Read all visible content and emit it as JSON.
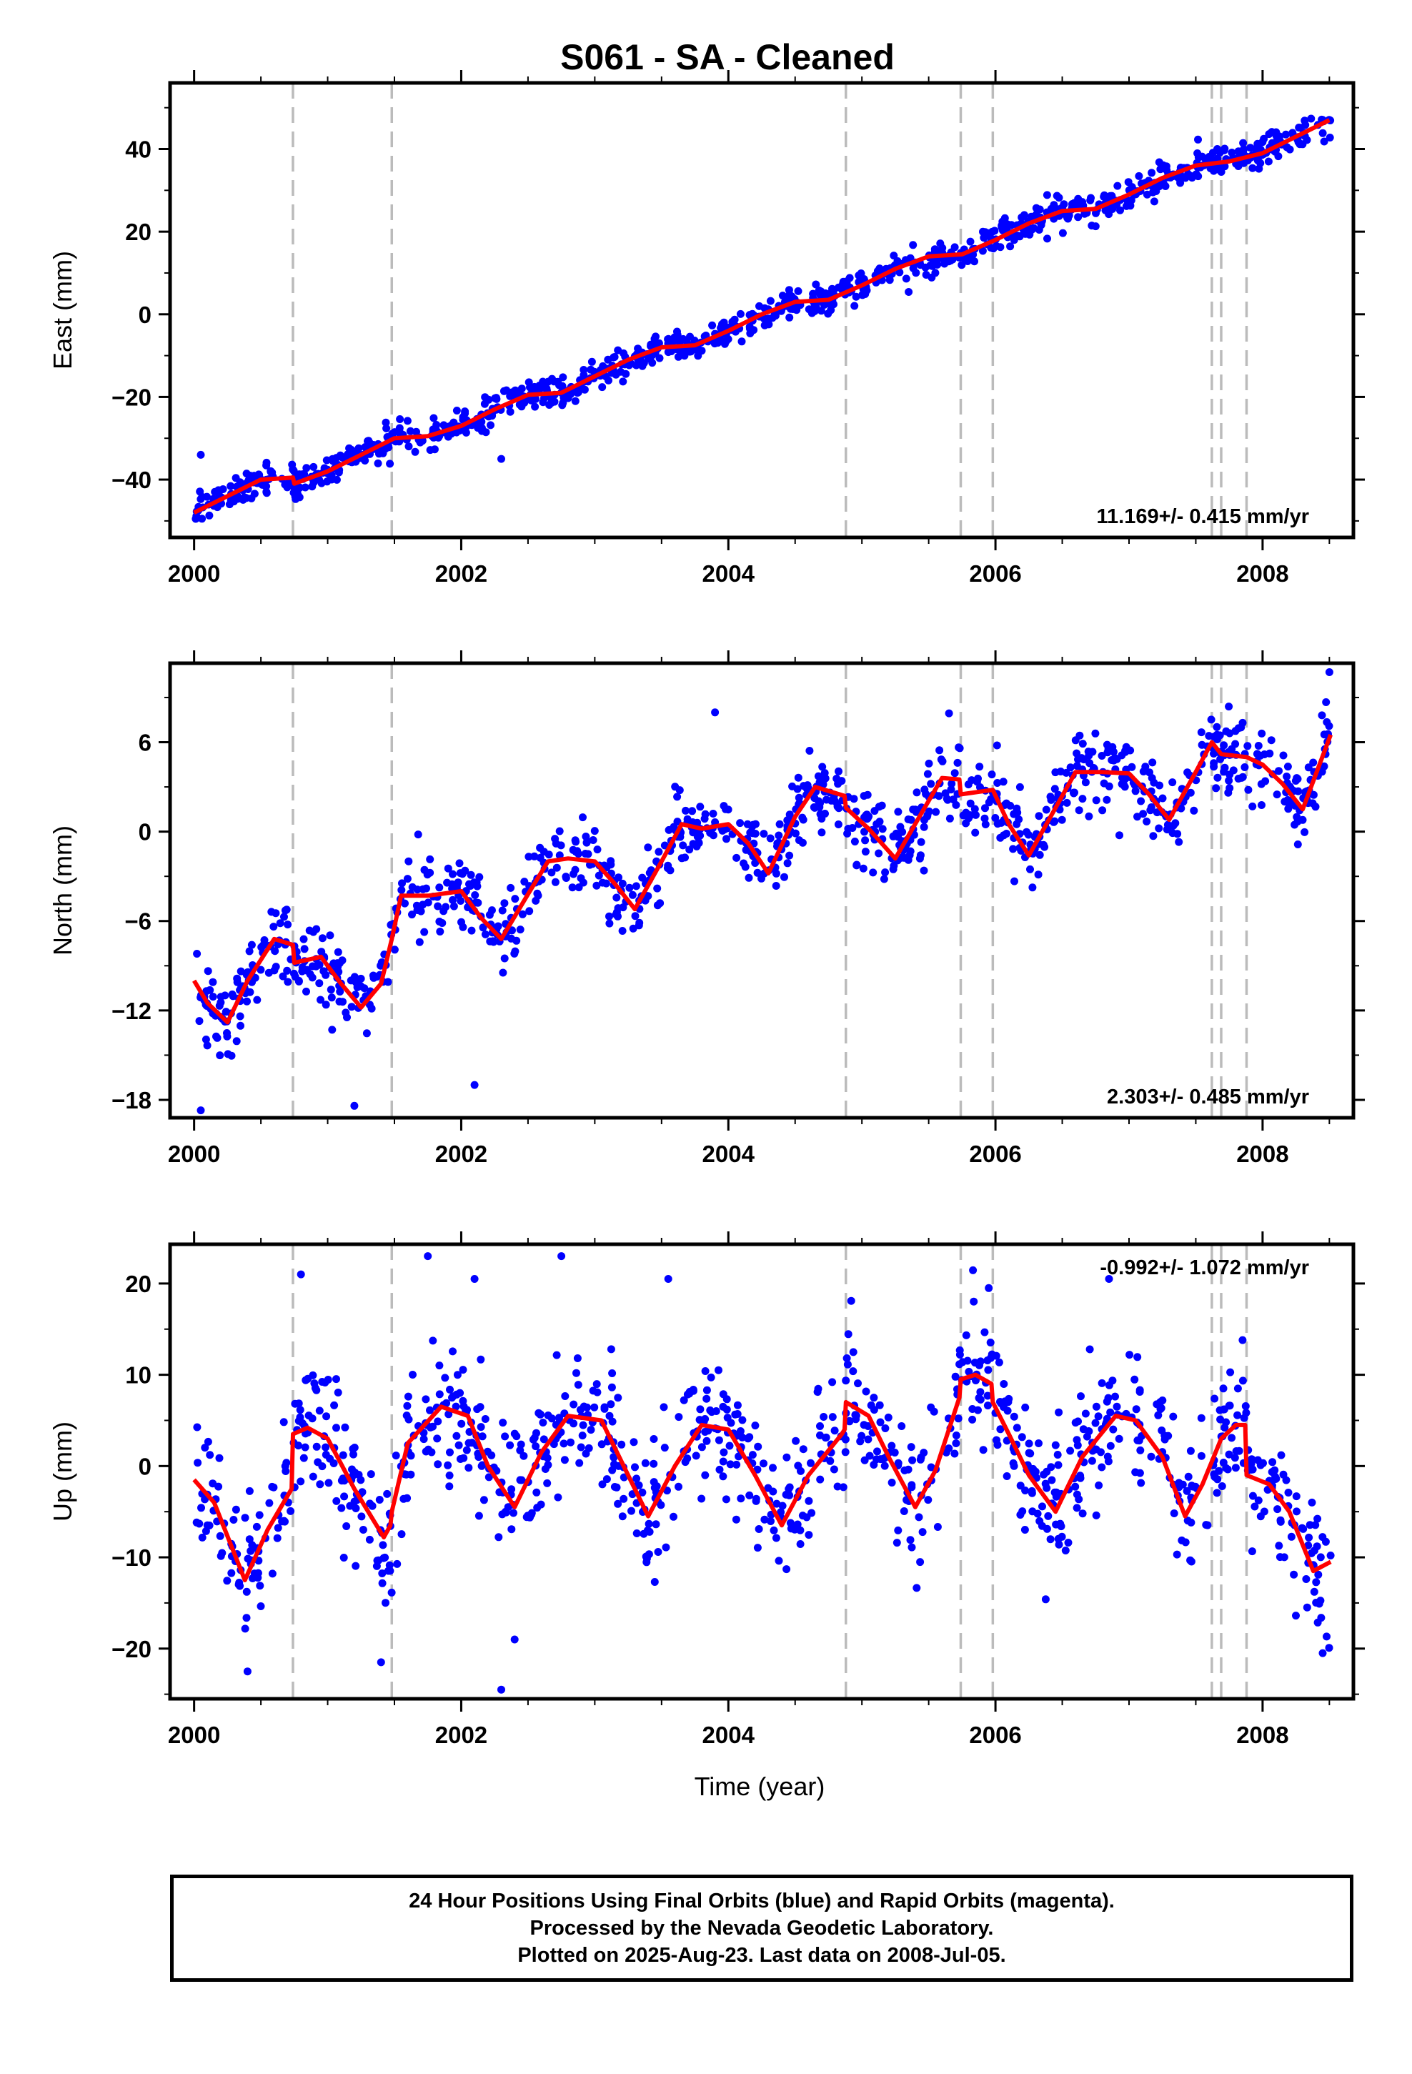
{
  "title": "S061  - SA - Cleaned",
  "colors": {
    "data_points": "#0000ff",
    "model": "#ff0000",
    "breaks": "#bbbbbb",
    "frame": "#000000"
  },
  "chart_data": [
    {
      "type": "scatter",
      "component": "East",
      "ylabel": "East (mm)",
      "xlabel": "",
      "xlim": [
        1999.82,
        2008.68
      ],
      "ylim": [
        -54,
        56
      ],
      "yticks": [
        -40,
        -20,
        0,
        20,
        40
      ],
      "xticks": [
        2000,
        2002,
        2004,
        2006,
        2008
      ],
      "rate_text": "11.169+/- 0.415 mm/yr",
      "rate_position": "bottom-right",
      "model": {
        "t": [
          2000.0,
          2000.25,
          2000.5,
          2000.74,
          2000.75,
          2001.0,
          2001.25,
          2001.5,
          2001.75,
          2002.0,
          2002.25,
          2002.5,
          2002.75,
          2003.0,
          2003.25,
          2003.5,
          2003.75,
          2004.0,
          2004.25,
          2004.5,
          2004.75,
          2005.0,
          2005.25,
          2005.5,
          2005.75,
          2006.0,
          2006.25,
          2006.5,
          2006.75,
          2007.0,
          2007.25,
          2007.5,
          2007.75,
          2008.0,
          2008.25,
          2008.5
        ],
        "y": [
          -48,
          -44,
          -40,
          -39.5,
          -41,
          -38,
          -34,
          -30,
          -29.5,
          -27,
          -23,
          -19.5,
          -19,
          -15,
          -11,
          -8,
          -7.5,
          -4,
          0,
          3,
          3.5,
          7,
          11,
          14,
          14.5,
          18,
          22,
          25,
          25.5,
          29,
          33,
          36,
          37,
          39,
          43,
          47
        ]
      },
      "break_years": [
        2000.74,
        2001.48,
        2004.88,
        2005.74,
        2005.98,
        2007.62,
        2007.69,
        2007.88
      ],
      "generator": {
        "start": 2000.0,
        "end": 2008.51,
        "n": 1000,
        "noise_sd": 1.8,
        "seed": 11,
        "spikes": [
          [
            2000.05,
            -34
          ],
          [
            2002.3,
            -35
          ]
        ]
      }
    },
    {
      "type": "scatter",
      "component": "North",
      "ylabel": "North (mm)",
      "xlabel": "",
      "xlim": [
        1999.82,
        2008.68
      ],
      "ylim": [
        -19.2,
        11.3
      ],
      "yticks": [
        -18,
        -12,
        -6,
        0,
        6
      ],
      "xticks": [
        2000,
        2002,
        2004,
        2006,
        2008
      ],
      "rate_text": "2.303+/- 0.485 mm/yr",
      "rate_position": "bottom-right",
      "model": {
        "t": [
          2000.0,
          2000.1,
          2000.25,
          2000.4,
          2000.6,
          2000.74,
          2000.75,
          2000.95,
          2001.1,
          2001.25,
          2001.4,
          2001.48,
          2001.55,
          2001.75,
          2002.0,
          2002.15,
          2002.3,
          2002.5,
          2002.65,
          2002.8,
          2003.0,
          2003.15,
          2003.3,
          2003.5,
          2003.65,
          2003.8,
          2004.0,
          2004.15,
          2004.3,
          2004.5,
          2004.65,
          2004.87,
          2004.88,
          2005.05,
          2005.25,
          2005.45,
          2005.6,
          2005.73,
          2005.74,
          2005.98,
          2006.1,
          2006.25,
          2006.45,
          2006.6,
          2006.8,
          2007.0,
          2007.15,
          2007.3,
          2007.5,
          2007.62,
          2007.69,
          2007.88,
          2008.0,
          2008.15,
          2008.3,
          2008.51
        ],
        "y": [
          -10,
          -11.5,
          -12.8,
          -10,
          -7.2,
          -7.6,
          -8.8,
          -8.4,
          -10.2,
          -11.8,
          -10.2,
          -7.2,
          -4.3,
          -4.3,
          -4.0,
          -5.8,
          -7.2,
          -4.2,
          -2.0,
          -1.8,
          -2.0,
          -3.5,
          -5.2,
          -2.0,
          0.5,
          0.2,
          0.5,
          -0.8,
          -2.8,
          1.0,
          3.0,
          2.4,
          1.6,
          0.2,
          -1.8,
          1.3,
          3.6,
          3.5,
          2.5,
          2.8,
          0.5,
          -1.6,
          1.6,
          4.0,
          4.0,
          3.9,
          2.5,
          0.8,
          4.0,
          6.0,
          5.2,
          5.0,
          4.5,
          3.2,
          1.5,
          6.5
        ]
      },
      "break_years": [
        2000.74,
        2001.48,
        2004.88,
        2005.74,
        2005.98,
        2007.62,
        2007.69,
        2007.88
      ],
      "generator": {
        "start": 2000.0,
        "end": 2008.51,
        "n": 1000,
        "noise_sd": 1.25,
        "seed": 22,
        "spikes": [
          [
            2000.05,
            -18.7
          ],
          [
            2001.2,
            -18.4
          ],
          [
            2002.1,
            -17.0
          ],
          [
            2003.9,
            8.0
          ],
          [
            2008.5,
            10.7
          ]
        ]
      }
    },
    {
      "type": "scatter",
      "component": "Up",
      "ylabel": "Up (mm)",
      "xlabel": "Time (year)",
      "xlim": [
        1999.82,
        2008.68
      ],
      "ylim": [
        -25.5,
        24.3
      ],
      "yticks": [
        -20,
        -10,
        0,
        10,
        20
      ],
      "xticks": [
        2000,
        2002,
        2004,
        2006,
        2008
      ],
      "rate_text": "-0.992+/- 1.072 mm/yr",
      "rate_position": "top-right",
      "model": {
        "t": [
          2000.0,
          2000.15,
          2000.38,
          2000.55,
          2000.73,
          2000.74,
          2000.85,
          2001.0,
          2001.2,
          2001.42,
          2001.47,
          2001.48,
          2001.6,
          2001.85,
          2002.05,
          2002.2,
          2002.4,
          2002.6,
          2002.8,
          2003.05,
          2003.2,
          2003.4,
          2003.6,
          2003.8,
          2004.0,
          2004.2,
          2004.4,
          2004.6,
          2004.85,
          2004.87,
          2004.88,
          2005.05,
          2005.2,
          2005.4,
          2005.55,
          2005.73,
          2005.74,
          2005.85,
          2005.97,
          2005.98,
          2006.1,
          2006.25,
          2006.45,
          2006.65,
          2006.9,
          2007.05,
          2007.25,
          2007.42,
          2007.55,
          2007.62,
          2007.69,
          2007.8,
          2007.87,
          2007.88,
          2008.05,
          2008.2,
          2008.38,
          2008.51
        ],
        "y": [
          -1.5,
          -4,
          -12.5,
          -7,
          -2.5,
          3.5,
          4.2,
          3.0,
          -2.5,
          -7.8,
          -6.5,
          -5,
          2.5,
          6.5,
          5.5,
          0.0,
          -4.5,
          1.5,
          5.5,
          5.0,
          0.5,
          -5.5,
          0.0,
          4.5,
          4.0,
          -1.0,
          -6.5,
          -1.0,
          3.5,
          4.0,
          7.0,
          5.5,
          1.0,
          -4.5,
          -0.5,
          7.5,
          9.5,
          10.0,
          9.0,
          7.0,
          3.5,
          -1.0,
          -5.0,
          1.0,
          5.5,
          5.0,
          1.0,
          -5.5,
          -2.0,
          0.5,
          3.0,
          4.5,
          4.5,
          -1.0,
          -2.0,
          -5.0,
          -11.5,
          -10.5
        ]
      },
      "break_years": [
        2000.74,
        2001.48,
        2004.88,
        2005.74,
        2005.98,
        2007.62,
        2007.69,
        2007.88
      ],
      "generator": {
        "start": 2000.0,
        "end": 2008.51,
        "n": 1000,
        "noise_sd": 3.6,
        "seed": 33,
        "spikes": [
          [
            2000.8,
            21.0
          ],
          [
            2001.75,
            23.0
          ],
          [
            2002.1,
            20.5
          ],
          [
            2002.75,
            23.0
          ],
          [
            2003.55,
            20.5
          ],
          [
            2005.95,
            19.5
          ],
          [
            2006.85,
            20.5
          ],
          [
            2002.3,
            -24.5
          ],
          [
            2000.4,
            -22.5
          ],
          [
            2001.4,
            -21.5
          ],
          [
            2002.4,
            -19.0
          ],
          [
            2008.45,
            -20.5
          ]
        ]
      }
    }
  ],
  "footer": {
    "line1": "24 Hour Positions Using Final Orbits (blue) and Rapid Orbits (magenta).",
    "line2": "Processed by the Nevada Geodetic Laboratory.",
    "line3": "Plotted on 2025-Aug-23. Last data on 2008-Jul-05."
  }
}
